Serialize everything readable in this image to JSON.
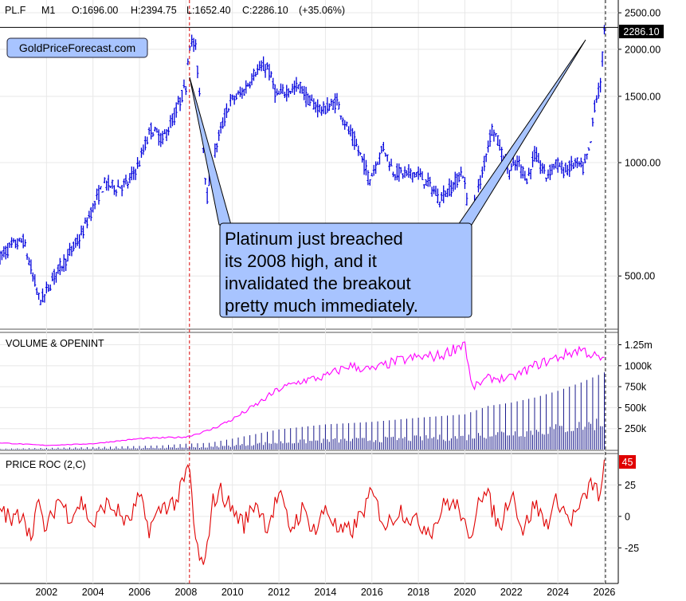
{
  "header": {
    "symbol": "PL.F",
    "interval": "M1",
    "open": "O:1696.00",
    "high": "H:2394.75",
    "low": "L:1652.40",
    "close": "C:2286.10",
    "change": "(+35.06%)"
  },
  "watermark": "GoldPriceForecast.com",
  "annotation": {
    "lines": [
      "Platinum just breached",
      "its 2008 high, and it",
      "invalidated the breakout",
      "pretty much immediately."
    ]
  },
  "colors": {
    "price": "#0000dd",
    "open_interest": "#ff00ff",
    "volume": "#1a1a8c",
    "roc": "#e00000",
    "annotation_fill": "#a8c4ff",
    "vline_2008": "#e03030",
    "vline_now": "#333333"
  },
  "chart_data": [
    {
      "type": "bar",
      "title": "",
      "panel": "price",
      "scale": "log",
      "x_range": [
        2000.0,
        2026.6
      ],
      "y_range": [
        370,
        2600
      ],
      "y_ticks": [
        {
          "v": 500,
          "label": "500.00"
        },
        {
          "v": 1000,
          "label": "1000.00"
        },
        {
          "v": 1500,
          "label": "1500.00"
        },
        {
          "v": 2000,
          "label": "2000.00"
        },
        {
          "v": 2500,
          "label": "2500.00"
        }
      ],
      "last_price": {
        "value": 2286.1,
        "label": "2286.10"
      },
      "series_points": [
        [
          2000.0,
          560
        ],
        [
          2000.5,
          600
        ],
        [
          2001.0,
          620
        ],
        [
          2001.4,
          500
        ],
        [
          2001.7,
          430
        ],
        [
          2001.9,
          440
        ],
        [
          2002.4,
          510
        ],
        [
          2002.9,
          560
        ],
        [
          2003.5,
          640
        ],
        [
          2004.0,
          760
        ],
        [
          2004.5,
          880
        ],
        [
          2005.0,
          860
        ],
        [
          2005.5,
          880
        ],
        [
          2006.0,
          1000
        ],
        [
          2006.5,
          1230
        ],
        [
          2007.0,
          1150
        ],
        [
          2007.5,
          1320
        ],
        [
          2008.0,
          1600
        ],
        [
          2008.15,
          2100
        ],
        [
          2008.4,
          2050
        ],
        [
          2008.7,
          1200
        ],
        [
          2008.9,
          800
        ],
        [
          2009.3,
          1100
        ],
        [
          2009.9,
          1450
        ],
        [
          2010.5,
          1550
        ],
        [
          2011.0,
          1750
        ],
        [
          2011.5,
          1800
        ],
        [
          2011.9,
          1500
        ],
        [
          2012.3,
          1550
        ],
        [
          2012.9,
          1600
        ],
        [
          2013.3,
          1450
        ],
        [
          2013.9,
          1380
        ],
        [
          2014.5,
          1450
        ],
        [
          2014.9,
          1250
        ],
        [
          2015.5,
          1050
        ],
        [
          2015.9,
          900
        ],
        [
          2016.5,
          1100
        ],
        [
          2016.9,
          950
        ],
        [
          2017.5,
          930
        ],
        [
          2017.9,
          940
        ],
        [
          2018.5,
          870
        ],
        [
          2018.9,
          800
        ],
        [
          2019.5,
          870
        ],
        [
          2019.9,
          950
        ],
        [
          2020.2,
          700
        ],
        [
          2020.7,
          900
        ],
        [
          2020.9,
          1050
        ],
        [
          2021.2,
          1250
        ],
        [
          2021.6,
          1050
        ],
        [
          2021.9,
          950
        ],
        [
          2022.3,
          1000
        ],
        [
          2022.7,
          900
        ],
        [
          2023.0,
          1050
        ],
        [
          2023.5,
          920
        ],
        [
          2023.9,
          1000
        ],
        [
          2024.3,
          950
        ],
        [
          2024.8,
          1000
        ],
        [
          2025.1,
          960
        ],
        [
          2025.4,
          1100
        ],
        [
          2025.6,
          1450
        ],
        [
          2025.85,
          1600
        ],
        [
          2026.0,
          2286
        ]
      ],
      "vertical_lines": [
        2008.15,
        2026.05
      ]
    },
    {
      "type": "bar",
      "title": "VOLUME & OPENINT",
      "panel": "volume",
      "y_range": [
        0,
        1350000
      ],
      "y_ticks": [
        {
          "v": 250000,
          "label": "250k"
        },
        {
          "v": 500000,
          "label": "500k"
        },
        {
          "v": 750000,
          "label": "750k"
        },
        {
          "v": 1000000,
          "label": "1000k"
        },
        {
          "v": 1250000,
          "label": "1.25m"
        }
      ],
      "volume_points": [
        [
          2000,
          10000
        ],
        [
          2004,
          30000
        ],
        [
          2007,
          50000
        ],
        [
          2008,
          70000
        ],
        [
          2009,
          80000
        ],
        [
          2010,
          130000
        ],
        [
          2012,
          240000
        ],
        [
          2014,
          300000
        ],
        [
          2016,
          330000
        ],
        [
          2018,
          380000
        ],
        [
          2020,
          420000
        ],
        [
          2021,
          520000
        ],
        [
          2022,
          560000
        ],
        [
          2023,
          620000
        ],
        [
          2024,
          700000
        ],
        [
          2025,
          800000
        ],
        [
          2026,
          920000
        ]
      ],
      "open_interest_points": [
        [
          2000,
          80000
        ],
        [
          2002,
          50000
        ],
        [
          2004,
          70000
        ],
        [
          2006,
          130000
        ],
        [
          2008,
          150000
        ],
        [
          2009,
          230000
        ],
        [
          2010,
          360000
        ],
        [
          2011,
          530000
        ],
        [
          2012,
          720000
        ],
        [
          2013,
          820000
        ],
        [
          2014,
          870000
        ],
        [
          2015,
          1000000
        ],
        [
          2016,
          950000
        ],
        [
          2017,
          1050000
        ],
        [
          2018,
          1100000
        ],
        [
          2019,
          1120000
        ],
        [
          2020,
          1280000
        ],
        [
          2020.3,
          730000
        ],
        [
          2021,
          850000
        ],
        [
          2022,
          850000
        ],
        [
          2023,
          1000000
        ],
        [
          2024,
          1100000
        ],
        [
          2025,
          1200000
        ],
        [
          2026,
          1050000
        ]
      ]
    },
    {
      "type": "line",
      "title": "PRICE ROC (2,C)",
      "panel": "roc",
      "y_range": [
        -52,
        48
      ],
      "y_ticks": [
        {
          "v": -25,
          "label": "-25"
        },
        {
          "v": 0,
          "label": "0"
        },
        {
          "v": 25,
          "label": "25"
        }
      ],
      "last_value": {
        "value": 45,
        "label": "45"
      },
      "roc_points": [
        [
          2000.0,
          8
        ],
        [
          2000.5,
          -5
        ],
        [
          2001.0,
          5
        ],
        [
          2001.3,
          -18
        ],
        [
          2001.6,
          10
        ],
        [
          2002.0,
          -12
        ],
        [
          2002.5,
          15
        ],
        [
          2003.0,
          0
        ],
        [
          2003.5,
          12
        ],
        [
          2004.0,
          -8
        ],
        [
          2004.5,
          10
        ],
        [
          2005.0,
          5
        ],
        [
          2005.5,
          -6
        ],
        [
          2006.0,
          15
        ],
        [
          2006.4,
          -10
        ],
        [
          2007.0,
          8
        ],
        [
          2007.6,
          12
        ],
        [
          2008.15,
          40
        ],
        [
          2008.4,
          -20
        ],
        [
          2008.8,
          -45
        ],
        [
          2009.1,
          10
        ],
        [
          2009.5,
          20
        ],
        [
          2010.0,
          5
        ],
        [
          2010.5,
          -6
        ],
        [
          2011.0,
          12
        ],
        [
          2011.5,
          -8
        ],
        [
          2012.0,
          18
        ],
        [
          2012.5,
          -10
        ],
        [
          2013.0,
          5
        ],
        [
          2013.6,
          -12
        ],
        [
          2014.0,
          8
        ],
        [
          2014.6,
          -14
        ],
        [
          2015.2,
          -10
        ],
        [
          2016.0,
          18
        ],
        [
          2016.6,
          -8
        ],
        [
          2017.2,
          6
        ],
        [
          2017.9,
          -5
        ],
        [
          2018.6,
          -10
        ],
        [
          2019.2,
          12
        ],
        [
          2019.8,
          6
        ],
        [
          2020.2,
          -25
        ],
        [
          2020.6,
          20
        ],
        [
          2021.0,
          15
        ],
        [
          2021.5,
          -10
        ],
        [
          2022.0,
          22
        ],
        [
          2022.5,
          -12
        ],
        [
          2023.0,
          10
        ],
        [
          2023.5,
          -6
        ],
        [
          2024.0,
          14
        ],
        [
          2024.5,
          -4
        ],
        [
          2025.0,
          8
        ],
        [
          2025.4,
          25
        ],
        [
          2025.6,
          28
        ],
        [
          2025.8,
          5
        ],
        [
          2026.0,
          45
        ]
      ]
    }
  ],
  "x_axis": {
    "labels": [
      "2002",
      "2004",
      "2006",
      "2008",
      "2010",
      "2012",
      "2014",
      "2016",
      "2018",
      "2020",
      "2022",
      "2024",
      "2026"
    ]
  }
}
